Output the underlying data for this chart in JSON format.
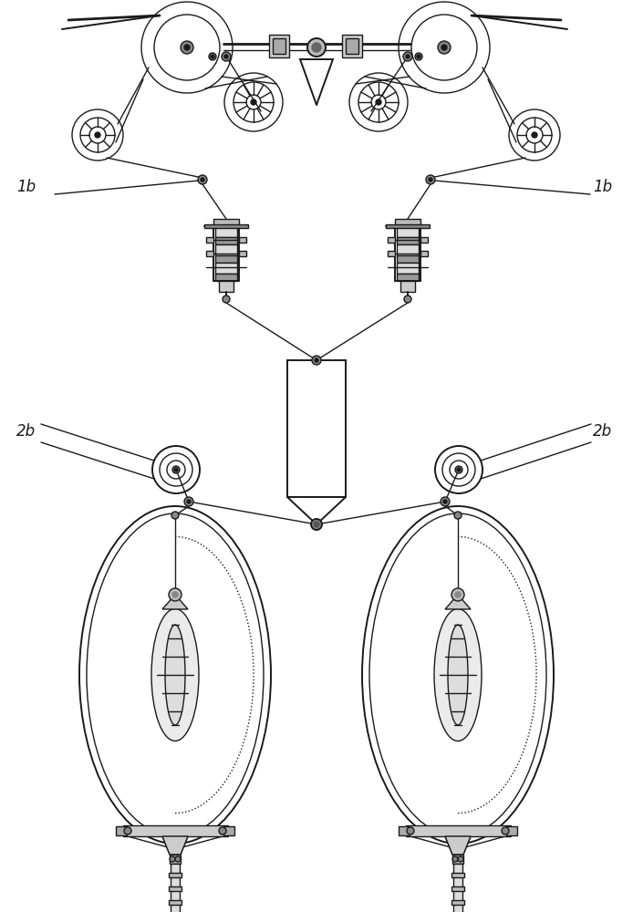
{
  "bg_color": "#ffffff",
  "line_color": "#1a1a1a",
  "label_1b_left": "1b",
  "label_1b_right": "1b",
  "label_2b_left": "2b",
  "label_2b_right": "2b",
  "fig_width": 6.94,
  "fig_height": 10.0,
  "dpi": 100
}
